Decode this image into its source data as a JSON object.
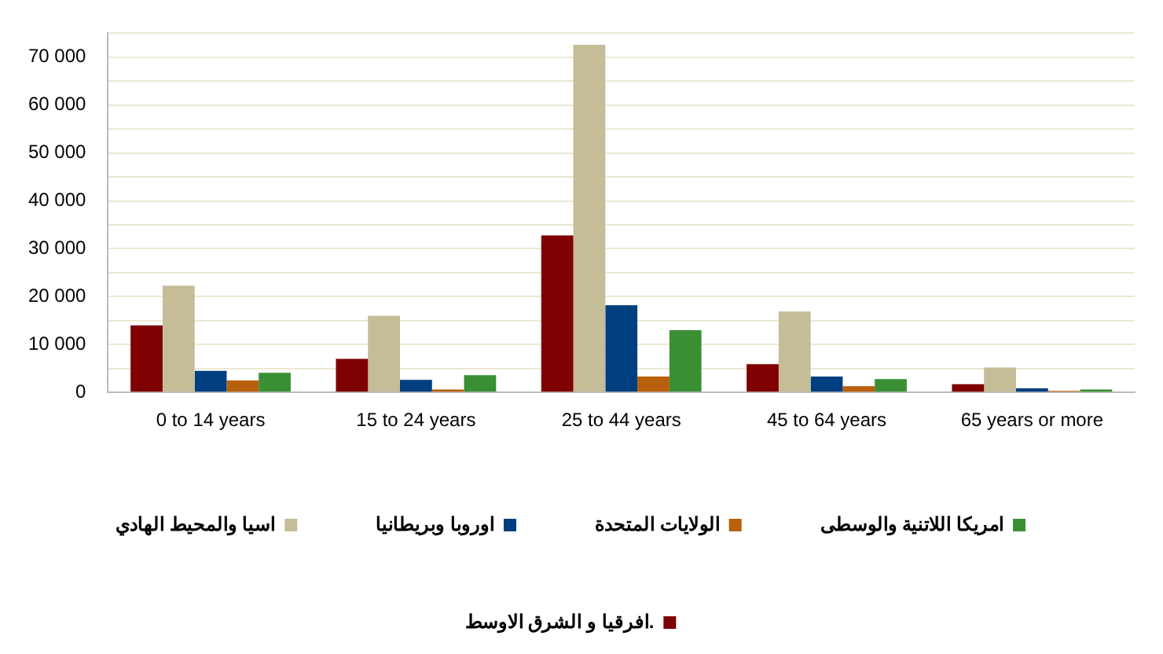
{
  "chart_data": {
    "type": "bar",
    "categories": [
      "0 to 14 years",
      "15 to 24 years",
      "25 to 44 years",
      "45 to 64 years",
      "65 years or more"
    ],
    "series": [
      {
        "name": "افرقيا و الشرق الاوسط.",
        "color": "#7f0000",
        "values": [
          14000,
          7000,
          32800,
          5900,
          1700
        ]
      },
      {
        "name": "اسيا والمحيط الهادي",
        "color": "#c4bd97",
        "values": [
          22300,
          16000,
          72600,
          16900,
          5200
        ]
      },
      {
        "name": "اوروبا وبريطانيا",
        "color": "#003f7f",
        "values": [
          4500,
          2600,
          18200,
          3300,
          850
        ]
      },
      {
        "name": "الولايات المتحدة",
        "color": "#b8600b",
        "values": [
          2500,
          600,
          3300,
          1300,
          300
        ]
      },
      {
        "name": "امريكا اللاتنية والوسطى",
        "color": "#3a8f34",
        "values": [
          4100,
          3600,
          13000,
          2800,
          600
        ]
      }
    ],
    "ylim": [
      0,
      75000
    ],
    "yticks": [
      0,
      {
        "value": 5000,
        "label": null
      },
      {
        "value": 10000,
        "label": "10 000"
      },
      {
        "value": 15000,
        "label": null
      },
      {
        "value": 20000,
        "label": "20 000"
      },
      {
        "value": 25000,
        "label": null
      },
      {
        "value": 30000,
        "label": "30 000"
      },
      {
        "value": 35000,
        "label": null
      },
      {
        "value": 40000,
        "label": "40 000"
      },
      {
        "value": 45000,
        "label": null
      },
      {
        "value": 50000,
        "label": "50 000"
      },
      {
        "value": 55000,
        "label": null
      },
      {
        "value": 60000,
        "label": "60 000"
      },
      {
        "value": 65000,
        "label": null
      },
      {
        "value": 70000,
        "label": "70 000"
      },
      {
        "value": 75000,
        "label": null
      }
    ],
    "grid": "y",
    "legend": "bottom"
  }
}
